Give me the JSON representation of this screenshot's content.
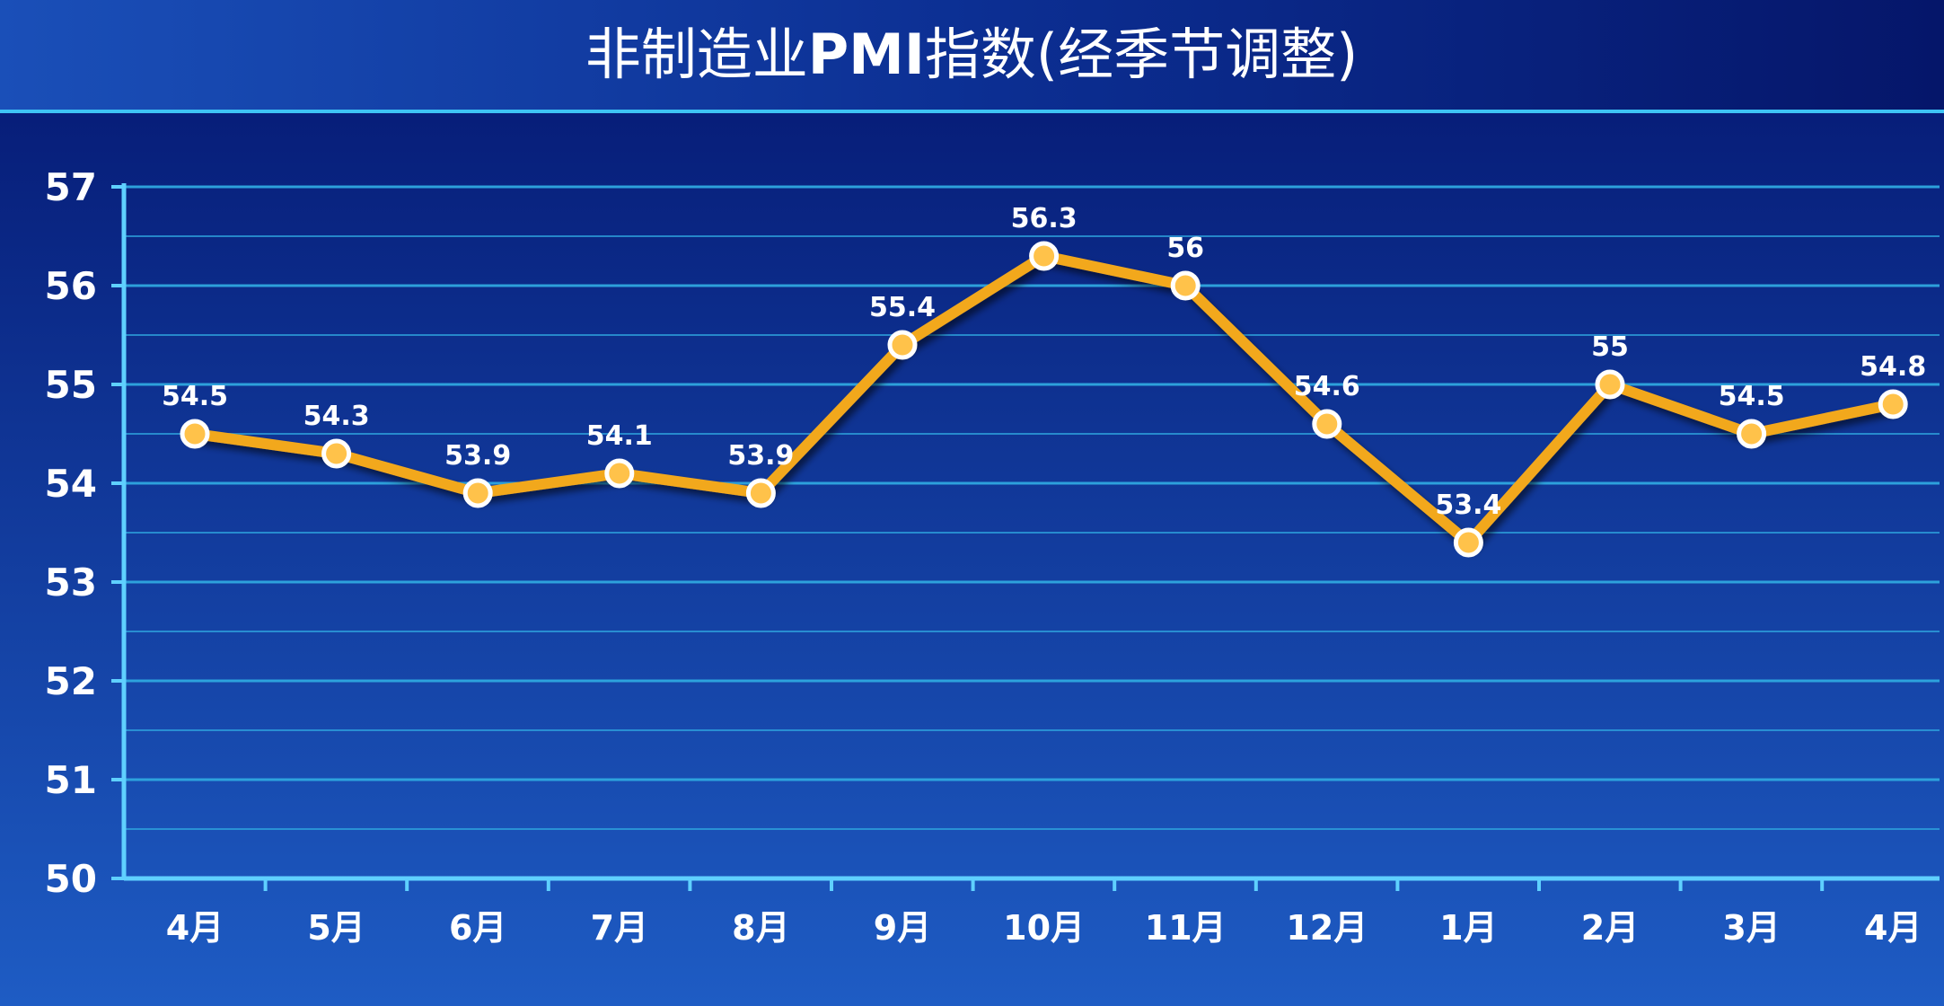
{
  "chart_data": {
    "type": "line",
    "title": "非制造业PMI指数(经季节调整)",
    "title_parts": {
      "prefix": "非制造业",
      "bold": "PMI",
      "suffix": "指数(经季节调整)"
    },
    "categories": [
      "4月",
      "5月",
      "6月",
      "7月",
      "8月",
      "9月",
      "10月",
      "11月",
      "12月",
      "1月",
      "2月",
      "3月",
      "4月"
    ],
    "series": [
      {
        "values": [
          54.5,
          54.3,
          53.9,
          54.1,
          53.9,
          55.4,
          56.3,
          56,
          54.6,
          53.4,
          55,
          54.5,
          54.8
        ],
        "data_labels": [
          "54.5",
          "54.3",
          "53.9",
          "54.1",
          "53.9",
          "55.4",
          "56.3",
          "56",
          "54.6",
          "53.4",
          "55",
          "54.5",
          "54.8"
        ]
      }
    ],
    "yticks": [
      "50",
      "51",
      "52",
      "53",
      "54",
      "55",
      "56",
      "57"
    ],
    "ylim": [
      50,
      57
    ],
    "grid": true,
    "minor_grid_step": 0.5,
    "legend": "none",
    "colors": {
      "line": "#f2a81e",
      "marker_fill": "#ffc24a",
      "marker_stroke": "#ffffff",
      "grid": "#2fa7e0",
      "axis": "#5fd0ff",
      "title_bar": "#0c2f93",
      "plot_bg_top": "#041670",
      "plot_bg_bottom": "#1e5cc4"
    }
  }
}
